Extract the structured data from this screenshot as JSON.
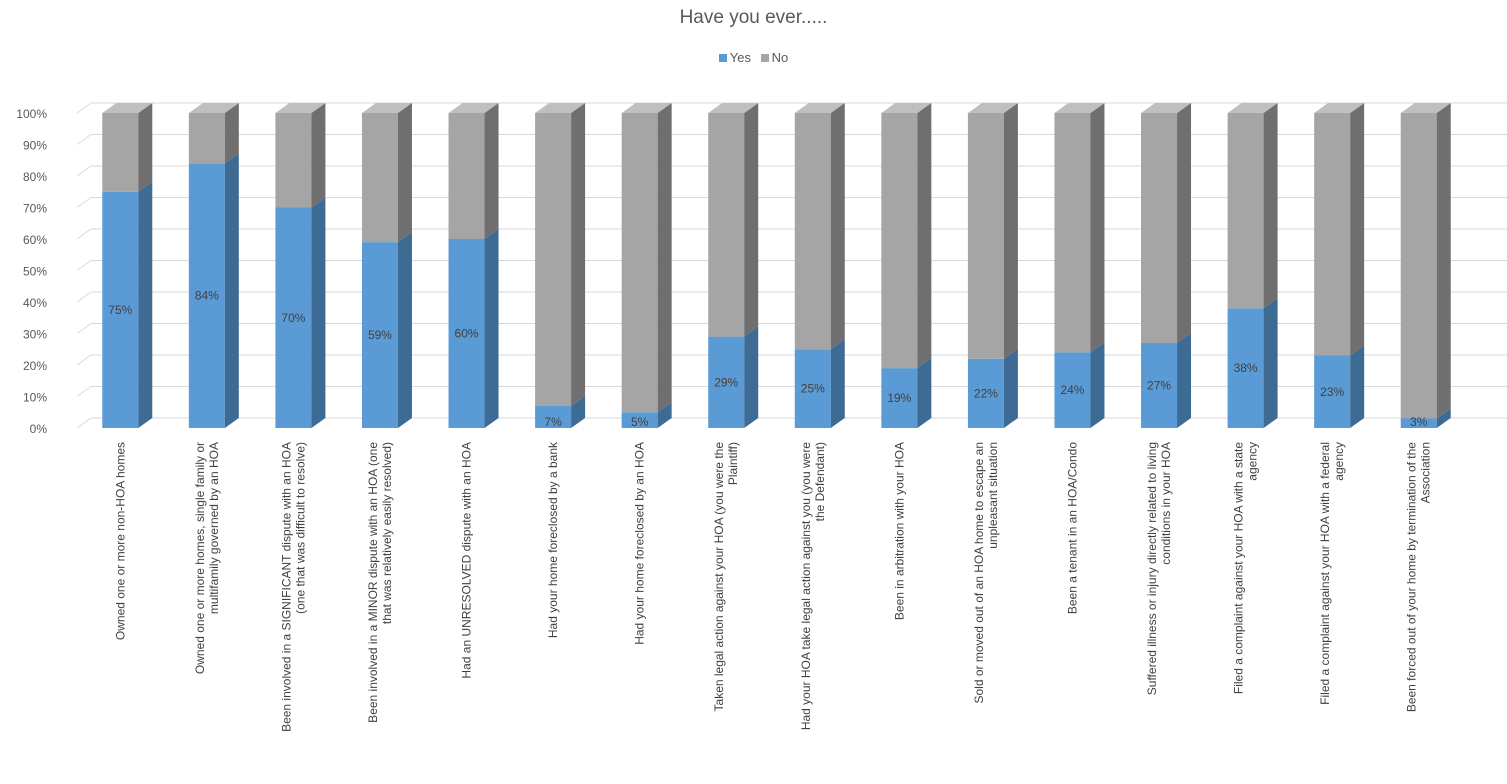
{
  "chart_data": {
    "type": "bar",
    "stacked": "percent",
    "style": "3d-column",
    "title": "Have you ever.....",
    "legend_position": "top",
    "grid": true,
    "ylim": [
      0,
      100
    ],
    "y_ticks": [
      "0%",
      "10%",
      "20%",
      "30%",
      "40%",
      "50%",
      "60%",
      "70%",
      "80%",
      "90%",
      "100%"
    ],
    "categories": [
      [
        "Owned one or more non-HOA homes"
      ],
      [
        "Owned one or more homes, single family or",
        "multifamily governed by an HOA"
      ],
      [
        "Been involved in a SIGNIFICANT dispute with an HOA",
        "(one that was difficult to resolve)"
      ],
      [
        "Been involved in a MINOR dispute with an HOA (one",
        "that was relatively easily resolved)"
      ],
      [
        "Had an UNRESOLVED dispute with an HOA"
      ],
      [
        "Had your home foreclosed by a bank"
      ],
      [
        "Had your home foreclosed by an HOA"
      ],
      [
        "Taken legal action against your HOA (you were the",
        "Plaintiff)"
      ],
      [
        "Had your HOA take legal action against you (you were",
        "the Defendant)"
      ],
      [
        "Been in arbitration with your HOA"
      ],
      [
        "Sold or moved out of an HOA home to escape an",
        "unpleasant situation"
      ],
      [
        "Been a tenant in an HOA/Condo"
      ],
      [
        "Suffered illness or injury directly related to living",
        "conditions in your HOA"
      ],
      [
        "Filed a complaint against your HOA with a state",
        "agency"
      ],
      [
        "Filed a complaint against your HOA with a federal",
        "agency"
      ],
      [
        "Been forced out of your home by termination of the",
        "Association"
      ]
    ],
    "series": [
      {
        "name": "Yes",
        "color": "#5b9bd5",
        "side_color": "#3e6b93",
        "values": [
          75,
          84,
          70,
          59,
          60,
          7,
          5,
          29,
          25,
          19,
          22,
          24,
          27,
          38,
          23,
          3
        ],
        "labels": [
          "75%",
          "84%",
          "70%",
          "59%",
          "60%",
          "7%",
          "5%",
          "29%",
          "25%",
          "19%",
          "22%",
          "24%",
          "27%",
          "38%",
          "23%",
          "3%"
        ]
      },
      {
        "name": "No",
        "color": "#a5a5a5",
        "side_color": "#6f6f6f",
        "values": [
          25,
          16,
          30,
          41,
          40,
          93,
          95,
          71,
          75,
          81,
          78,
          76,
          73,
          62,
          77,
          97
        ]
      }
    ]
  }
}
